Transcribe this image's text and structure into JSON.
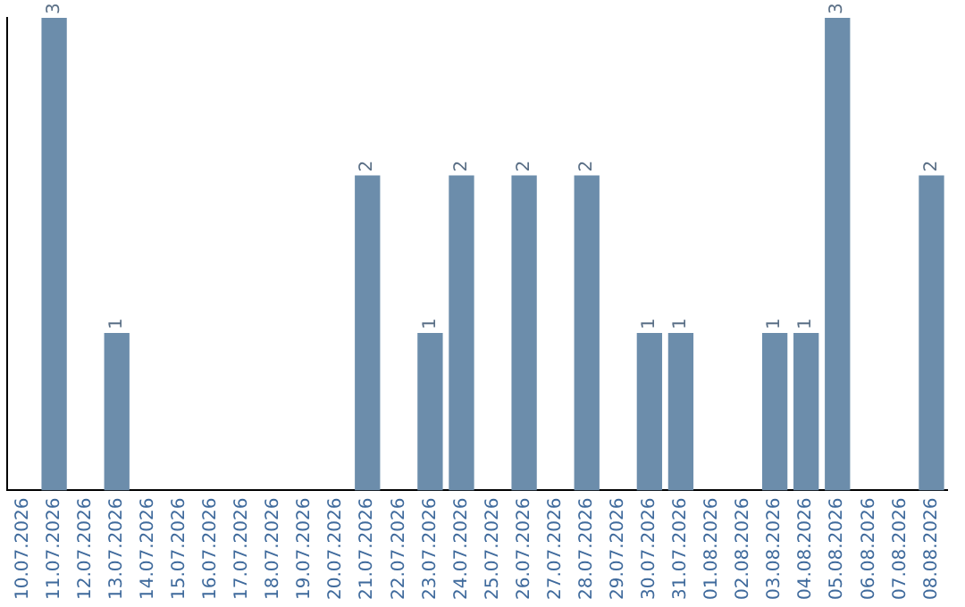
{
  "chart_data": {
    "type": "bar",
    "categories": [
      "10.07.2026",
      "11.07.2026",
      "12.07.2026",
      "13.07.2026",
      "14.07.2026",
      "15.07.2026",
      "16.07.2026",
      "17.07.2026",
      "18.07.2026",
      "19.07.2026",
      "20.07.2026",
      "21.07.2026",
      "22.07.2026",
      "23.07.2026",
      "24.07.2026",
      "25.07.2026",
      "26.07.2026",
      "27.07.2026",
      "28.07.2026",
      "29.07.2026",
      "30.07.2026",
      "31.07.2026",
      "01.08.2026",
      "02.08.2026",
      "03.08.2026",
      "04.08.2026",
      "05.08.2026",
      "06.08.2026",
      "07.08.2026",
      "08.08.2026"
    ],
    "values": [
      0,
      3,
      0,
      1,
      0,
      0,
      0,
      0,
      0,
      0,
      0,
      2,
      0,
      1,
      2,
      0,
      2,
      0,
      2,
      0,
      1,
      1,
      0,
      0,
      1,
      1,
      3,
      0,
      0,
      2
    ],
    "value_labels": [
      null,
      "3",
      null,
      "1",
      null,
      null,
      null,
      null,
      null,
      null,
      null,
      "2",
      null,
      "1",
      "2",
      null,
      "2",
      null,
      "2",
      null,
      "1",
      "1",
      null,
      null,
      "1",
      "1",
      "3",
      null,
      null,
      "2"
    ],
    "color": "#6c8dab",
    "tick_labels": "x",
    "grid": false,
    "legend": false
  }
}
